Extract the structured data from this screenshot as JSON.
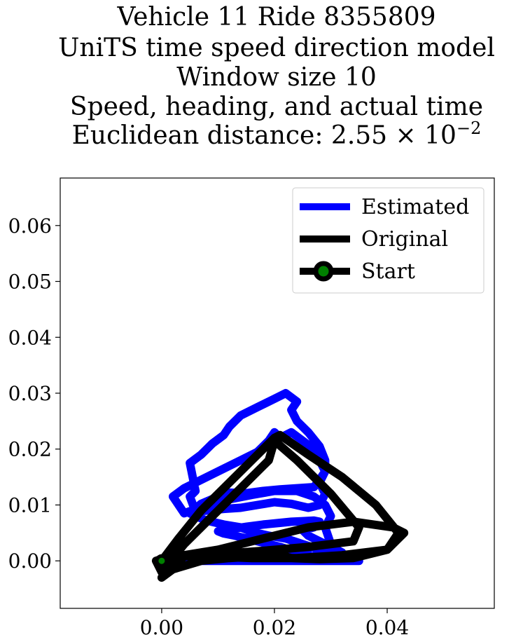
{
  "chart_data": {
    "type": "line",
    "title_lines": [
      "Vehicle 11 Ride 8355809",
      "UniTS time speed direction model",
      "Window size 10",
      "Speed, heading, and actual time"
    ],
    "title_distance_prefix": "Euclidean distance: 2.55 × 10",
    "title_distance_exponent": "−2",
    "xlim": [
      -0.018,
      0.059
    ],
    "ylim": [
      -0.0085,
      0.0685
    ],
    "x_ticks": [
      0.0,
      0.02,
      0.04
    ],
    "x_tick_labels": [
      "0.00",
      "0.02",
      "0.04"
    ],
    "y_ticks": [
      0.0,
      0.01,
      0.02,
      0.03,
      0.04,
      0.05,
      0.06
    ],
    "y_tick_labels": [
      "0.00",
      "0.01",
      "0.02",
      "0.03",
      "0.04",
      "0.05",
      "0.06"
    ],
    "legend": {
      "placement": "top-right",
      "entries": [
        "Estimated",
        "Original",
        "Start"
      ]
    },
    "series": [
      {
        "name": "Estimated",
        "color": "#0000ff",
        "x": [
          0.0,
          0.003,
          0.006,
          0.01,
          0.014,
          0.018,
          0.022,
          0.025,
          0.028,
          0.03,
          0.029,
          0.03,
          0.029,
          0.027,
          0.024,
          0.02,
          0.016,
          0.012,
          0.008,
          0.004,
          0.002,
          0.004,
          0.007,
          0.01,
          0.014,
          0.017,
          0.019,
          0.02,
          0.021,
          0.023,
          0.025,
          0.027,
          0.028,
          0.029,
          0.028,
          0.029,
          0.028,
          0.026,
          0.023,
          0.02,
          0.017,
          0.014,
          0.011,
          0.008,
          0.006,
          0.005,
          0.006,
          0.005,
          0.007,
          0.009,
          0.011,
          0.012,
          0.014,
          0.017,
          0.02,
          0.022,
          0.024,
          0.023,
          0.024,
          0.026,
          0.028,
          0.029,
          0.029,
          0.028,
          0.027,
          0.024,
          0.021,
          0.018,
          0.015,
          0.012,
          0.01,
          0.007,
          0.005,
          0.006,
          0.008,
          0.011,
          0.014,
          0.016,
          0.019,
          0.022,
          0.025,
          0.028,
          0.03,
          0.032,
          0.033,
          0.032,
          0.029,
          0.026,
          0.025,
          0.027,
          0.028,
          0.027,
          0.025,
          0.023,
          0.021,
          0.018,
          0.015,
          0.013,
          0.011,
          0.01,
          0.011,
          0.013,
          0.015,
          0.017,
          0.019,
          0.021,
          0.022,
          0.023,
          0.024,
          0.025,
          0.026,
          0.025,
          0.024,
          0.023,
          0.022,
          0.021,
          0.02,
          0.018,
          0.016,
          0.014,
          0.012,
          0.009,
          0.007,
          0.006,
          0.008,
          0.011,
          0.014,
          0.018,
          0.022,
          0.026,
          0.03,
          0.033,
          0.035,
          0.033,
          0.03,
          0.028,
          0.026,
          0.025
        ],
        "y": [
          0.0,
          0.0,
          0.0,
          0.0002,
          0.0005,
          0.0004,
          0.0003,
          0.0005,
          0.001,
          0.003,
          0.006,
          0.008,
          0.01,
          0.0115,
          0.0125,
          0.0125,
          0.0118,
          0.011,
          0.01,
          0.0085,
          0.0115,
          0.013,
          0.0145,
          0.016,
          0.018,
          0.0195,
          0.0215,
          0.023,
          0.022,
          0.023,
          0.0215,
          0.02,
          0.018,
          0.016,
          0.014,
          0.012,
          0.01,
          0.0095,
          0.0102,
          0.0105,
          0.01,
          0.0095,
          0.0093,
          0.009,
          0.0088,
          0.0115,
          0.0125,
          0.0175,
          0.019,
          0.021,
          0.0225,
          0.024,
          0.026,
          0.0275,
          0.029,
          0.03,
          0.0285,
          0.027,
          0.025,
          0.023,
          0.0205,
          0.018,
          0.016,
          0.0145,
          0.0132,
          0.013,
          0.0128,
          0.0125,
          0.0121,
          0.0122,
          0.0115,
          0.0102,
          0.0085,
          0.008,
          0.0072,
          0.0065,
          0.006,
          0.0052,
          0.0045,
          0.004,
          0.003,
          0.002,
          0.0015,
          0.0008,
          0.0,
          0.0015,
          0.003,
          0.0045,
          0.0055,
          0.006,
          0.007,
          0.0072,
          0.0071,
          0.007,
          0.0068,
          0.0065,
          0.0061,
          0.0058,
          0.0055,
          0.0053,
          0.0049,
          0.0045,
          0.004,
          0.0035,
          0.003,
          0.0025,
          0.0022,
          0.002,
          0.0018,
          0.0015,
          0.0012,
          0.001,
          0.0007,
          0.0005,
          0.0003,
          0.0002,
          0.0001,
          0.0002,
          0.0003,
          0.0004,
          0.0003,
          0.0002,
          0.0001,
          0.0,
          0.0,
          0.0,
          0.0,
          0.0,
          0.0,
          0.0,
          0.0,
          0.0,
          0.0,
          0.0,
          0.0,
          0.0,
          0.0,
          0.0
        ]
      },
      {
        "name": "Original",
        "color": "#000000",
        "x": [
          0.0,
          0.003,
          0.007,
          0.012,
          0.017,
          0.02,
          0.021,
          0.026,
          0.032,
          0.038,
          0.042,
          0.04,
          0.032,
          0.024,
          0.016,
          0.008,
          0.002,
          -0.001,
          0.0,
          0.004,
          0.009,
          0.014,
          0.019,
          0.02,
          0.024,
          0.03,
          0.035,
          0.034,
          0.026,
          0.018,
          0.01,
          0.004,
          0.0,
          0.002,
          0.007,
          0.012,
          0.017,
          0.021,
          0.023,
          0.028,
          0.034,
          0.04,
          0.043,
          0.041,
          0.034,
          0.026,
          0.018,
          0.01,
          0.004,
          0.0
        ],
        "y": [
          0.0,
          0.004,
          0.009,
          0.014,
          0.019,
          0.022,
          0.0225,
          0.019,
          0.015,
          0.01,
          0.005,
          0.002,
          0.001,
          0.0005,
          0.0005,
          0.0008,
          0.001,
          0.0,
          -0.002,
          0.003,
          0.008,
          0.013,
          0.018,
          0.0215,
          0.018,
          0.012,
          0.006,
          0.0035,
          0.0025,
          0.0018,
          0.0012,
          0.0008,
          -0.003,
          -0.0015,
          0.0,
          0.0005,
          0.0008,
          0.001,
          0.0005,
          0.0003,
          0.0005,
          0.002,
          0.005,
          0.006,
          0.007,
          0.006,
          0.004,
          0.002,
          0.001,
          0.0
        ]
      }
    ],
    "start_point": {
      "name": "Start",
      "x": 0.0,
      "y": 0.0,
      "color": "#008000",
      "edge_color": "#000000"
    }
  }
}
